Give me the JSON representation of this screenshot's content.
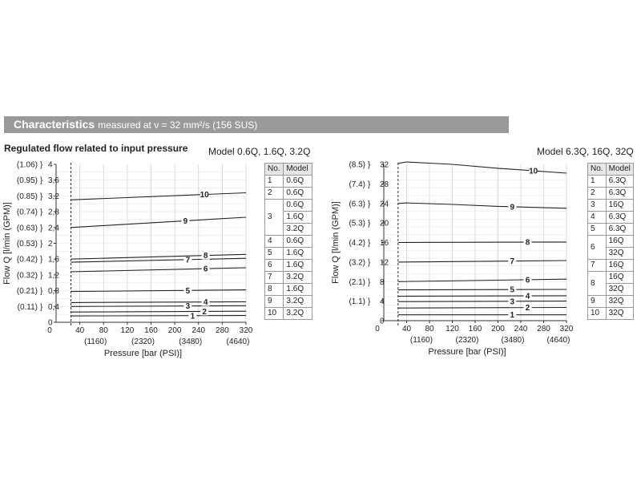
{
  "header": {
    "title": "Characteristics",
    "subtitle": "measured at ν = 32 mm²/s (156 SUS)",
    "accent_color": "#9a9a9a"
  },
  "section_heading": "Regulated flow related to input pressure",
  "chart_data": [
    {
      "type": "line",
      "caption": "Model 0.6Q, 1.6Q, 3.2Q",
      "xlabel": "Pressure [bar (PSI)]",
      "ylabel": "Flow Q [l/min (GPM)]",
      "xlim": [
        0,
        320
      ],
      "ylim": [
        0,
        4
      ],
      "x_ticks": [
        40,
        80,
        120,
        160,
        200,
        240,
        280,
        320
      ],
      "x_ticks_psi": [
        {
          "value": 80,
          "label": "(1160)"
        },
        {
          "value": 160,
          "label": "(2320)"
        },
        {
          "value": 240,
          "label": "(3480)"
        },
        {
          "value": 320,
          "label": "(4640)"
        }
      ],
      "y_ticks": [
        {
          "value": 0,
          "label": "0",
          "gpm": ""
        },
        {
          "value": 0.4,
          "label": "0,4",
          "gpm": "(0.11)"
        },
        {
          "value": 0.8,
          "label": "0,8",
          "gpm": "(0.21)"
        },
        {
          "value": 1.2,
          "label": "1,2",
          "gpm": "(0.32)"
        },
        {
          "value": 1.6,
          "label": "1,6",
          "gpm": "(0.42)"
        },
        {
          "value": 2.0,
          "label": "2",
          "gpm": "(0.53)"
        },
        {
          "value": 2.4,
          "label": "2,4",
          "gpm": "(0.63)"
        },
        {
          "value": 2.8,
          "label": "2,8",
          "gpm": "(0.74)"
        },
        {
          "value": 3.2,
          "label": "3,2",
          "gpm": "(0.85)"
        },
        {
          "value": 3.6,
          "label": "3,6",
          "gpm": "(0.95)"
        },
        {
          "value": 4.0,
          "label": "4",
          "gpm": "(1.06)"
        }
      ],
      "reference_line_x": 25,
      "grid": true,
      "series": [
        {
          "name": "1",
          "x": [
            25,
            320
          ],
          "y": [
            0.16,
            0.17
          ],
          "label_at": 230
        },
        {
          "name": "2",
          "x": [
            25,
            320
          ],
          "y": [
            0.26,
            0.28
          ],
          "label_at": 250
        },
        {
          "name": "3",
          "x": [
            25,
            320
          ],
          "y": [
            0.4,
            0.42
          ],
          "label_at": 222
        },
        {
          "name": "4",
          "x": [
            25,
            320
          ],
          "y": [
            0.5,
            0.52
          ],
          "label_at": 252
        },
        {
          "name": "5",
          "x": [
            25,
            320
          ],
          "y": [
            0.78,
            0.82
          ],
          "label_at": 222
        },
        {
          "name": "6",
          "x": [
            25,
            320
          ],
          "y": [
            1.28,
            1.38
          ],
          "label_at": 252
        },
        {
          "name": "7",
          "x": [
            25,
            320
          ],
          "y": [
            1.52,
            1.62
          ],
          "label_at": 222
        },
        {
          "name": "8",
          "x": [
            25,
            320
          ],
          "y": [
            1.6,
            1.72
          ],
          "label_at": 252
        },
        {
          "name": "9",
          "x": [
            25,
            320
          ],
          "y": [
            2.4,
            2.66
          ],
          "label_at": 218
        },
        {
          "name": "10",
          "x": [
            25,
            320
          ],
          "y": [
            3.1,
            3.28
          ],
          "label_at": 250
        }
      ]
    },
    {
      "type": "line",
      "caption": "Model 6.3Q, 16Q, 32Q",
      "xlabel": "Pressure [bar (PSI)]",
      "ylabel": "Flow Q [l/min (GPM)]",
      "xlim": [
        0,
        320
      ],
      "ylim": [
        0,
        32
      ],
      "x_ticks": [
        40,
        80,
        120,
        160,
        200,
        240,
        280,
        320
      ],
      "x_ticks_psi": [
        {
          "value": 80,
          "label": "(1160)"
        },
        {
          "value": 160,
          "label": "(2320)"
        },
        {
          "value": 240,
          "label": "(3480)"
        },
        {
          "value": 320,
          "label": "(4640)"
        }
      ],
      "y_ticks": [
        {
          "value": 0,
          "label": "0",
          "gpm": ""
        },
        {
          "value": 4,
          "label": "4",
          "gpm": "(1.1)"
        },
        {
          "value": 8,
          "label": "8",
          "gpm": "(2.1)"
        },
        {
          "value": 12,
          "label": "12",
          "gpm": "(3.2)"
        },
        {
          "value": 16,
          "label": "16",
          "gpm": "(4.2)"
        },
        {
          "value": 20,
          "label": "20",
          "gpm": "(5.3)"
        },
        {
          "value": 24,
          "label": "24",
          "gpm": "(6.3)"
        },
        {
          "value": 28,
          "label": "28",
          "gpm": "(7.4)"
        },
        {
          "value": 32,
          "label": "32",
          "gpm": "(8.5)"
        }
      ],
      "reference_line_x": 25,
      "grid": true,
      "series": [
        {
          "name": "1",
          "x": [
            25,
            320
          ],
          "y": [
            1.2,
            1.2
          ],
          "label_at": 225
        },
        {
          "name": "2",
          "x": [
            25,
            320
          ],
          "y": [
            2.6,
            2.7
          ],
          "label_at": 252
        },
        {
          "name": "3",
          "x": [
            25,
            320
          ],
          "y": [
            3.9,
            4.0
          ],
          "label_at": 225
        },
        {
          "name": "4",
          "x": [
            25,
            320
          ],
          "y": [
            5.0,
            5.1
          ],
          "label_at": 252
        },
        {
          "name": "5",
          "x": [
            25,
            320
          ],
          "y": [
            6.3,
            6.4
          ],
          "label_at": 225
        },
        {
          "name": "6",
          "x": [
            25,
            320
          ],
          "y": [
            8.0,
            8.5
          ],
          "label_at": 252
        },
        {
          "name": "7",
          "x": [
            25,
            320
          ],
          "y": [
            12.0,
            12.3
          ],
          "label_at": 225
        },
        {
          "name": "8",
          "x": [
            25,
            320
          ],
          "y": [
            16.0,
            16.1
          ],
          "label_at": 252
        },
        {
          "name": "9",
          "x": [
            25,
            40,
            120,
            200,
            320
          ],
          "y": [
            24.0,
            24.1,
            23.8,
            23.4,
            23.0
          ],
          "label_at": 225
        },
        {
          "name": "10",
          "x": [
            25,
            40,
            120,
            200,
            320
          ],
          "y": [
            32.2,
            32.5,
            32.0,
            31.2,
            30.2
          ],
          "label_at": 262
        }
      ]
    }
  ],
  "tables": [
    {
      "headers": [
        "No.",
        "Model"
      ],
      "rows": [
        {
          "no": "1",
          "models": [
            "0.6Q"
          ]
        },
        {
          "no": "2",
          "models": [
            "0.6Q"
          ]
        },
        {
          "no": "3",
          "models": [
            "0.6Q",
            "1.6Q",
            "3.2Q"
          ]
        },
        {
          "no": "4",
          "models": [
            "0.6Q"
          ]
        },
        {
          "no": "5",
          "models": [
            "1.6Q"
          ]
        },
        {
          "no": "6",
          "models": [
            "1.6Q"
          ]
        },
        {
          "no": "7",
          "models": [
            "3.2Q"
          ]
        },
        {
          "no": "8",
          "models": [
            "1.6Q"
          ]
        },
        {
          "no": "9",
          "models": [
            "3.2Q"
          ]
        },
        {
          "no": "10",
          "models": [
            "3.2Q"
          ]
        }
      ]
    },
    {
      "headers": [
        "No.",
        "Model"
      ],
      "rows": [
        {
          "no": "1",
          "models": [
            "6.3Q"
          ]
        },
        {
          "no": "2",
          "models": [
            "6.3Q"
          ]
        },
        {
          "no": "3",
          "models": [
            "16Q"
          ]
        },
        {
          "no": "4",
          "models": [
            "6.3Q"
          ]
        },
        {
          "no": "5",
          "models": [
            "6.3Q"
          ]
        },
        {
          "no": "6",
          "models": [
            "16Q",
            "32Q"
          ]
        },
        {
          "no": "7",
          "models": [
            "16Q"
          ]
        },
        {
          "no": "8",
          "models": [
            "16Q",
            "32Q"
          ]
        },
        {
          "no": "9",
          "models": [
            "32Q"
          ]
        },
        {
          "no": "10",
          "models": [
            "32Q"
          ]
        }
      ]
    }
  ]
}
